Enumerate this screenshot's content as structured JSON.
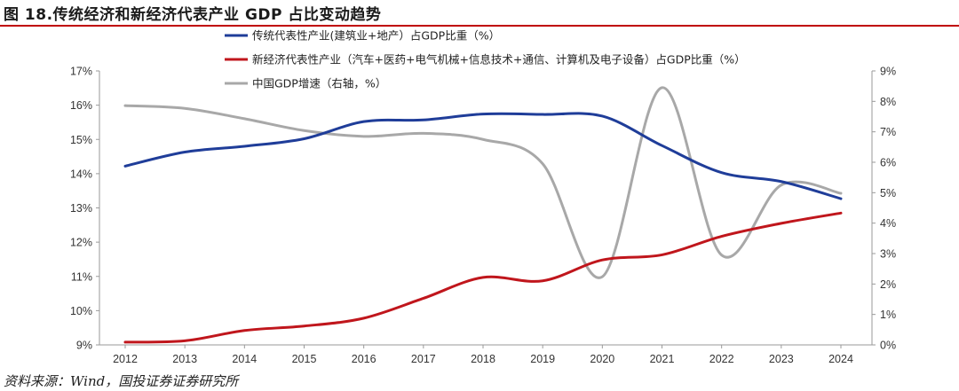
{
  "figure": {
    "title": "图 18.传统经济和新经济代表产业 GDP 占比变动趋势",
    "source": "资料来源：Wind，国投证券证券研究所"
  },
  "chart_data": {
    "type": "line",
    "categories": [
      "2012",
      "2013",
      "2014",
      "2015",
      "2016",
      "2017",
      "2018",
      "2019",
      "2020",
      "2021",
      "2022",
      "2023",
      "2024"
    ],
    "left_axis": {
      "ylim": [
        9,
        17
      ],
      "ticks": [
        "9%",
        "10%",
        "11%",
        "12%",
        "13%",
        "14%",
        "15%",
        "16%",
        "17%"
      ]
    },
    "right_axis": {
      "ylim": [
        0,
        9
      ],
      "ticks": [
        "0%",
        "1%",
        "2%",
        "3%",
        "4%",
        "5%",
        "6%",
        "7%",
        "8%",
        "9%"
      ]
    },
    "series": [
      {
        "name": "传统代表性产业(建筑业+地产）占GDP比重（%）",
        "axis": "left",
        "color": "#1f3d99",
        "values": [
          14.22,
          14.63,
          14.8,
          15.02,
          15.52,
          15.57,
          15.74,
          15.73,
          15.68,
          14.82,
          14.03,
          13.77,
          13.27
        ]
      },
      {
        "name": "新经济代表性产业（汽车+医药+电气机械+信息技术+通信、计算机及电子设备）占GDP比重（%）",
        "axis": "left",
        "color": "#c0161c",
        "values": [
          9.08,
          9.12,
          9.42,
          9.55,
          9.78,
          10.36,
          10.97,
          10.87,
          11.48,
          11.63,
          12.17,
          12.55,
          12.85
        ]
      },
      {
        "name": "中国GDP增速（右轴，%）",
        "axis": "right",
        "color": "#a8a8a8",
        "values": [
          7.86,
          7.77,
          7.43,
          7.04,
          6.85,
          6.95,
          6.75,
          5.95,
          2.24,
          8.45,
          2.95,
          5.25,
          4.98
        ]
      }
    ],
    "legend_position": "top-left"
  }
}
